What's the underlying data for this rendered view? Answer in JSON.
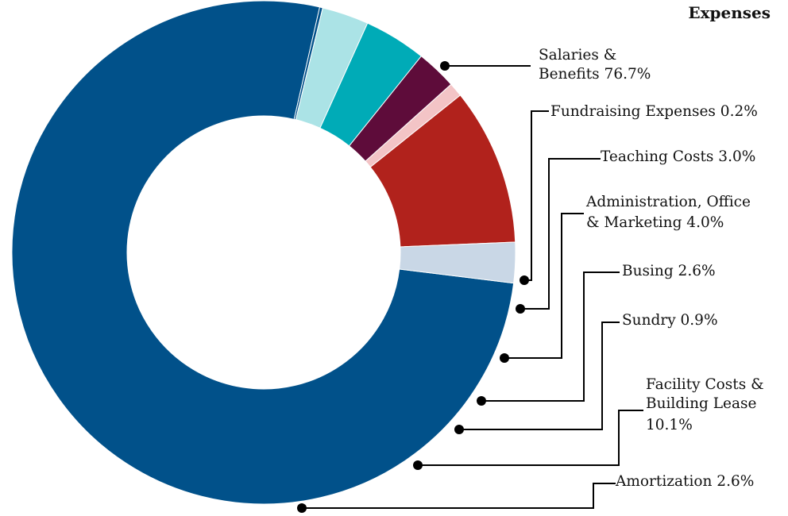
{
  "chart_data": {
    "type": "pie",
    "title": "Expenses",
    "slices": [
      {
        "label": "Salaries & Benefits",
        "value": 76.7,
        "text": "Salaries & Benefits 76.7%",
        "color": "#01518a"
      },
      {
        "label": "Fundraising Expenses",
        "value": 0.2,
        "text": "Fundraising Expenses 0.2%",
        "color": "#01518a"
      },
      {
        "label": "Teaching Costs",
        "value": 3.0,
        "text": "Teaching Costs 3.0%",
        "color": "#abe3e6"
      },
      {
        "label": "Administration, Office & Marketing",
        "value": 4.0,
        "text": "Administration, Office & Marketing 4.0%",
        "color": "#00abb7"
      },
      {
        "label": "Busing",
        "value": 2.6,
        "text": "Busing 2.6%",
        "color": "#5e0c3a"
      },
      {
        "label": "Sundry",
        "value": 0.9,
        "text": "Sundry 0.9%",
        "color": "#f3c4c6"
      },
      {
        "label": "Facility Costs & Building Lease",
        "value": 10.1,
        "text": "Facility Costs & Building Lease 10.1%",
        "color": "#b1221c"
      },
      {
        "label": "Amortization",
        "value": 2.6,
        "text": "Amortization 2.6%",
        "color": "#c9d7e6"
      }
    ],
    "legend": "none"
  }
}
